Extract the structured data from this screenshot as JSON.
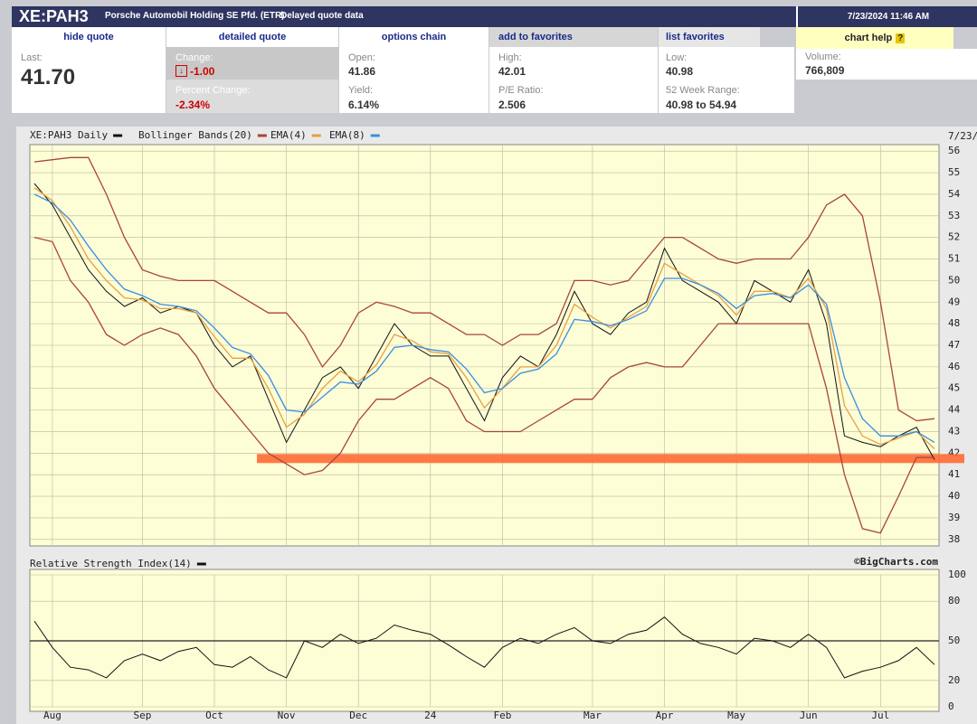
{
  "header": {
    "symbol": "XE:PAH3",
    "company": "Porsche Automobil Holding SE Pfd. (ETR)",
    "note": "Delayed quote data",
    "timestamp": "7/23/2024 11:46 AM"
  },
  "tabs": [
    "hide quote",
    "detailed quote",
    "options chain",
    "add to favorites",
    "list favorites",
    "chart help"
  ],
  "quote": {
    "last": {
      "label": "Last:",
      "value": "41.70"
    },
    "change": {
      "label": "Change:",
      "value": "-1.00"
    },
    "percent_change": {
      "label": "Percent Change:",
      "value": "-2.34%"
    },
    "open": {
      "label": "Open:",
      "value": "41.86"
    },
    "yield": {
      "label": "Yield:",
      "value": "6.14%"
    },
    "high": {
      "label": "High:",
      "value": "42.01"
    },
    "pe_ratio": {
      "label": "P/E Ratio:",
      "value": "2.506"
    },
    "low": {
      "label": "Low:",
      "value": "40.98"
    },
    "week52_range": {
      "label": "52 Week Range:",
      "value": "40.98 to 54.94"
    },
    "volume": {
      "label": "Volume:",
      "value": "766,809"
    }
  },
  "chart_data": [
    {
      "type": "line",
      "title": "XE:PAH3 Daily",
      "date_label": "7/23/",
      "categories": [
        null,
        "Aug",
        null,
        null,
        null,
        null,
        "Sep",
        null,
        null,
        null,
        "Oct",
        null,
        null,
        null,
        "Nov",
        null,
        null,
        null,
        "Dec",
        null,
        null,
        null,
        "24",
        null,
        null,
        null,
        "Feb",
        null,
        null,
        null,
        null,
        "Mar",
        null,
        null,
        null,
        "Apr",
        null,
        null,
        null,
        "May",
        null,
        null,
        null,
        "Jun",
        null,
        null,
        null,
        "Jul",
        null,
        null,
        null
      ],
      "series": [
        {
          "name": "XE:PAH3 Daily",
          "color": "#111111",
          "values": [
            54.5,
            53.5,
            52,
            50.5,
            49.5,
            48.8,
            49.2,
            48.5,
            48.8,
            48.5,
            47,
            46,
            46.5,
            44.5,
            42.5,
            44,
            45.5,
            46,
            45,
            46.5,
            48,
            47,
            46.5,
            46.5,
            45,
            43.5,
            45.5,
            46.5,
            46,
            47.5,
            49.5,
            48,
            47.5,
            48.5,
            49,
            51.5,
            50,
            49.5,
            49,
            48,
            50,
            49.5,
            49,
            50.5,
            48,
            42.8,
            42.5,
            42.3,
            42.8,
            43.2,
            41.7
          ]
        },
        {
          "name": "Bollinger Bands(20)",
          "color": "#a8453c",
          "upper": [
            55.5,
            55.6,
            55.7,
            55.7,
            54,
            52,
            50.5,
            50.2,
            50,
            50,
            50,
            49.5,
            49,
            48.5,
            48.5,
            47.5,
            46,
            47,
            48.5,
            49,
            48.8,
            48.5,
            48.5,
            48,
            47.5,
            47.5,
            47,
            47.5,
            47.5,
            48,
            50,
            50,
            49.8,
            50,
            51,
            52,
            52,
            51.5,
            51,
            50.8,
            51,
            51,
            51,
            52,
            53.5,
            54,
            53,
            49,
            44,
            43.5,
            43.6
          ],
          "lower": [
            52,
            51.8,
            50,
            49,
            47.5,
            47,
            47.5,
            47.8,
            47.5,
            46.5,
            45,
            44,
            43,
            42,
            41.5,
            41,
            41.2,
            42,
            43.5,
            44.5,
            44.5,
            45,
            45.5,
            45,
            43.5,
            43,
            43,
            43,
            43.5,
            44,
            44.5,
            44.5,
            45.5,
            46,
            46.2,
            46,
            46,
            47,
            48,
            48,
            48,
            48,
            48,
            48,
            45,
            41,
            38.5,
            38.3,
            40,
            41.8,
            41.8
          ]
        },
        {
          "name": "EMA(4)",
          "color": "#e8a040",
          "values": [
            54.3,
            53.7,
            52.5,
            51,
            50,
            49.2,
            49.1,
            48.7,
            48.7,
            48.5,
            47.4,
            46.4,
            46.4,
            45,
            43.2,
            43.8,
            45,
            45.8,
            45.3,
            46.1,
            47.5,
            47.2,
            46.7,
            46.6,
            45.5,
            44.1,
            45,
            46,
            46,
            47,
            48.9,
            48.3,
            47.8,
            48.3,
            48.8,
            50.8,
            50.3,
            49.8,
            49.3,
            48.4,
            49.5,
            49.5,
            49.2,
            50.1,
            48.7,
            44.2,
            42.8,
            42.4,
            42.7,
            43,
            42.2
          ]
        },
        {
          "name": "EMA(8)",
          "color": "#3a8ee0",
          "values": [
            54,
            53.6,
            52.8,
            51.6,
            50.5,
            49.6,
            49.3,
            48.9,
            48.8,
            48.6,
            47.8,
            46.9,
            46.6,
            45.6,
            44,
            43.9,
            44.6,
            45.3,
            45.2,
            45.8,
            46.9,
            47,
            46.8,
            46.7,
            45.9,
            44.8,
            45,
            45.7,
            45.9,
            46.6,
            48.2,
            48.1,
            47.9,
            48.2,
            48.6,
            50.1,
            50.1,
            49.8,
            49.4,
            48.7,
            49.3,
            49.4,
            49.2,
            49.8,
            48.9,
            45.5,
            43.6,
            42.8,
            42.8,
            43,
            42.5
          ]
        }
      ],
      "support_level": 41.75,
      "support_color": "#ff6a35",
      "ylim": [
        37.7,
        56.3
      ],
      "yticks": [
        38,
        39,
        40,
        41,
        42,
        43,
        44,
        45,
        46,
        47,
        48,
        49,
        50,
        51,
        52,
        53,
        54,
        55,
        56
      ],
      "grid": true
    },
    {
      "type": "line",
      "title": "Relative Strength Index(14)",
      "credit": "©BigCharts.com",
      "series": [
        {
          "name": "Relative Strength Index(14)",
          "color": "#111111",
          "values": [
            65,
            45,
            30,
            28,
            22,
            35,
            40,
            35,
            42,
            45,
            32,
            30,
            38,
            28,
            22,
            50,
            45,
            55,
            48,
            52,
            62,
            58,
            55,
            47,
            38,
            30,
            45,
            52,
            48,
            55,
            60,
            50,
            48,
            55,
            58,
            68,
            55,
            48,
            45,
            40,
            52,
            50,
            45,
            55,
            45,
            22,
            27,
            30,
            35,
            45,
            32
          ]
        }
      ],
      "reference": 50,
      "ylim": [
        0,
        100
      ],
      "yticks": [
        0,
        20,
        50,
        80,
        100
      ],
      "grid": true
    }
  ]
}
